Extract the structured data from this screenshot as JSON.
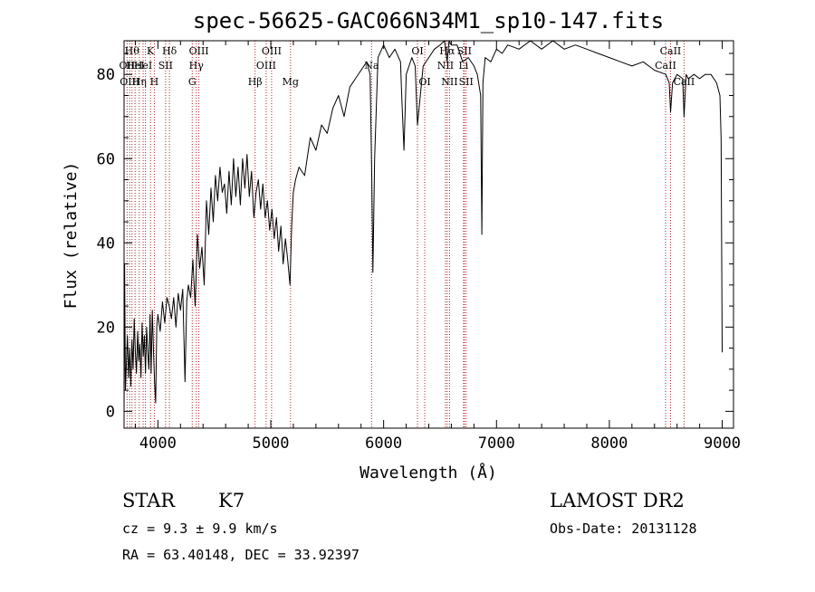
{
  "chart_data": {
    "type": "line",
    "title": "spec-56625-GAC066N34M1_sp10-147.fits",
    "xlabel": "Wavelength (Å)",
    "ylabel": "Flux (relative)",
    "xlim": [
      3700,
      9100
    ],
    "ylim": [
      -4,
      88
    ],
    "xticks": [
      4000,
      5000,
      6000,
      7000,
      8000,
      9000
    ],
    "xtick_labels": [
      "4000",
      "5000",
      "6000",
      "7000",
      "8000",
      "9000"
    ],
    "yticks": [
      0,
      20,
      40,
      60,
      80
    ],
    "ytick_labels": [
      "0",
      "20",
      "40",
      "60",
      "80"
    ],
    "grid": false,
    "spectrum": {
      "name": "",
      "x": [
        3700,
        3705,
        3712,
        3720,
        3730,
        3740,
        3750,
        3760,
        3770,
        3780,
        3790,
        3800,
        3810,
        3820,
        3830,
        3840,
        3850,
        3860,
        3870,
        3880,
        3890,
        3900,
        3910,
        3920,
        3930,
        3940,
        3950,
        3960,
        3970,
        3980,
        3990,
        4000,
        4020,
        4040,
        4060,
        4080,
        4100,
        4120,
        4140,
        4160,
        4180,
        4200,
        4220,
        4240,
        4255,
        4270,
        4290,
        4310,
        4330,
        4350,
        4370,
        4390,
        4410,
        4430,
        4450,
        4470,
        4490,
        4510,
        4530,
        4550,
        4570,
        4590,
        4610,
        4630,
        4650,
        4670,
        4690,
        4710,
        4730,
        4750,
        4770,
        4790,
        4810,
        4830,
        4850,
        4870,
        4890,
        4910,
        4930,
        4950,
        4970,
        4990,
        5010,
        5030,
        5050,
        5070,
        5090,
        5110,
        5130,
        5150,
        5170,
        5185,
        5200,
        5220,
        5250,
        5300,
        5350,
        5400,
        5450,
        5500,
        5550,
        5600,
        5650,
        5700,
        5750,
        5800,
        5850,
        5880,
        5895,
        5905,
        5920,
        5950,
        6000,
        6050,
        6100,
        6150,
        6160,
        6180,
        6200,
        6250,
        6280,
        6300,
        6350,
        6400,
        6450,
        6500,
        6540,
        6563,
        6580,
        6600,
        6650,
        6700,
        6750,
        6800,
        6830,
        6860,
        6870,
        6880,
        6900,
        6950,
        7000,
        7050,
        7100,
        7200,
        7300,
        7400,
        7500,
        7600,
        7700,
        7800,
        7900,
        8000,
        8100,
        8200,
        8300,
        8400,
        8500,
        8530,
        8542,
        8560,
        8600,
        8650,
        8662,
        8680,
        8700,
        8750,
        8800,
        8850,
        8900,
        8950,
        8980,
        8990,
        9000
      ],
      "y": [
        -1,
        35,
        5,
        11,
        18,
        8,
        15,
        6,
        17,
        10,
        22,
        14,
        9,
        19,
        12,
        16,
        8,
        21,
        13,
        18,
        9,
        20,
        14,
        10,
        23,
        9,
        24,
        15,
        7,
        2,
        20,
        23,
        19,
        26,
        21,
        27,
        25,
        22,
        27,
        20,
        28,
        24,
        29,
        7,
        26,
        30,
        27,
        36,
        25,
        42,
        34,
        39,
        30,
        50,
        42,
        53,
        45,
        56,
        50,
        58,
        52,
        54,
        47,
        57,
        49,
        60,
        51,
        58,
        49,
        60,
        53,
        61,
        51,
        57,
        46,
        52,
        55,
        48,
        54,
        46,
        50,
        43,
        48,
        41,
        46,
        38,
        44,
        35,
        41,
        36,
        30,
        44,
        52,
        55,
        58,
        56,
        65,
        62,
        68,
        66,
        72,
        75,
        70,
        77,
        79,
        81,
        83,
        80,
        55,
        33,
        60,
        84,
        87,
        84,
        86,
        83,
        75,
        62,
        80,
        84,
        82,
        68,
        82,
        84,
        86,
        87,
        90,
        83,
        91,
        87,
        87,
        83,
        84,
        82,
        80,
        75,
        42,
        78,
        84,
        83,
        86,
        85,
        87,
        86,
        88,
        86,
        88,
        86,
        87,
        86,
        85,
        84,
        83,
        82,
        83,
        81,
        80,
        78,
        71,
        78,
        80,
        79,
        70,
        80,
        79,
        80,
        79,
        80,
        80,
        78,
        75,
        65,
        14
      ]
    },
    "lines": [
      {
        "w": 3727,
        "label": "OII",
        "row": 1
      },
      {
        "w": 3750,
        "label": "OIII",
        "row": 2
      },
      {
        "w": 3770,
        "label": "Hθ",
        "row": 0
      },
      {
        "w": 3798,
        "label": "HeI",
        "row": 1
      },
      {
        "w": 3835,
        "label": "Hη",
        "row": 2
      },
      {
        "w": 3869,
        "label": "HeI",
        "row": 1
      },
      {
        "w": 3889,
        "label": "",
        "row": -1
      },
      {
        "w": 3934,
        "label": "K",
        "row": 0
      },
      {
        "w": 3968,
        "label": "H",
        "row": 2
      },
      {
        "w": 4068,
        "label": "SII",
        "row": 1
      },
      {
        "w": 4102,
        "label": "Hδ",
        "row": 0
      },
      {
        "w": 4304,
        "label": "G",
        "row": 2
      },
      {
        "w": 4340,
        "label": "Hγ",
        "row": 1
      },
      {
        "w": 4363,
        "label": "OIII",
        "row": 0
      },
      {
        "w": 4861,
        "label": "Hβ",
        "row": 2
      },
      {
        "w": 4959,
        "label": "OIII",
        "row": 1
      },
      {
        "w": 5007,
        "label": "OIII",
        "row": 0
      },
      {
        "w": 5175,
        "label": "Mg",
        "row": 2
      },
      {
        "w": 5893,
        "label": "Na",
        "row": 1
      },
      {
        "w": 6300,
        "label": "OI",
        "row": 0
      },
      {
        "w": 6364,
        "label": "OI",
        "row": 2
      },
      {
        "w": 6548,
        "label": "NII",
        "row": 1
      },
      {
        "w": 6563,
        "label": "Hα",
        "row": 0
      },
      {
        "w": 6584,
        "label": "NII",
        "row": 2
      },
      {
        "w": 6708,
        "label": "Li",
        "row": 1
      },
      {
        "w": 6716,
        "label": "SII",
        "row": 0
      },
      {
        "w": 6731,
        "label": "SII",
        "row": 2
      },
      {
        "w": 8498,
        "label": "CaII",
        "row": 1
      },
      {
        "w": 8542,
        "label": "CaII",
        "row": 0
      },
      {
        "w": 8662,
        "label": "CaII",
        "row": 2
      }
    ]
  },
  "info": {
    "object_class": "STAR",
    "subclass": "K7",
    "survey": "LAMOST DR2",
    "redshift": "cz = 9.3 ± 9.9 km/s",
    "obs_date": "Obs-Date: 20131128",
    "coords": "RA =  63.40148, DEC =  33.92397"
  },
  "colors": {
    "axes": "#000000",
    "spectrum": "#000000",
    "line_markers": "#b22222",
    "background": "#ffffff"
  }
}
